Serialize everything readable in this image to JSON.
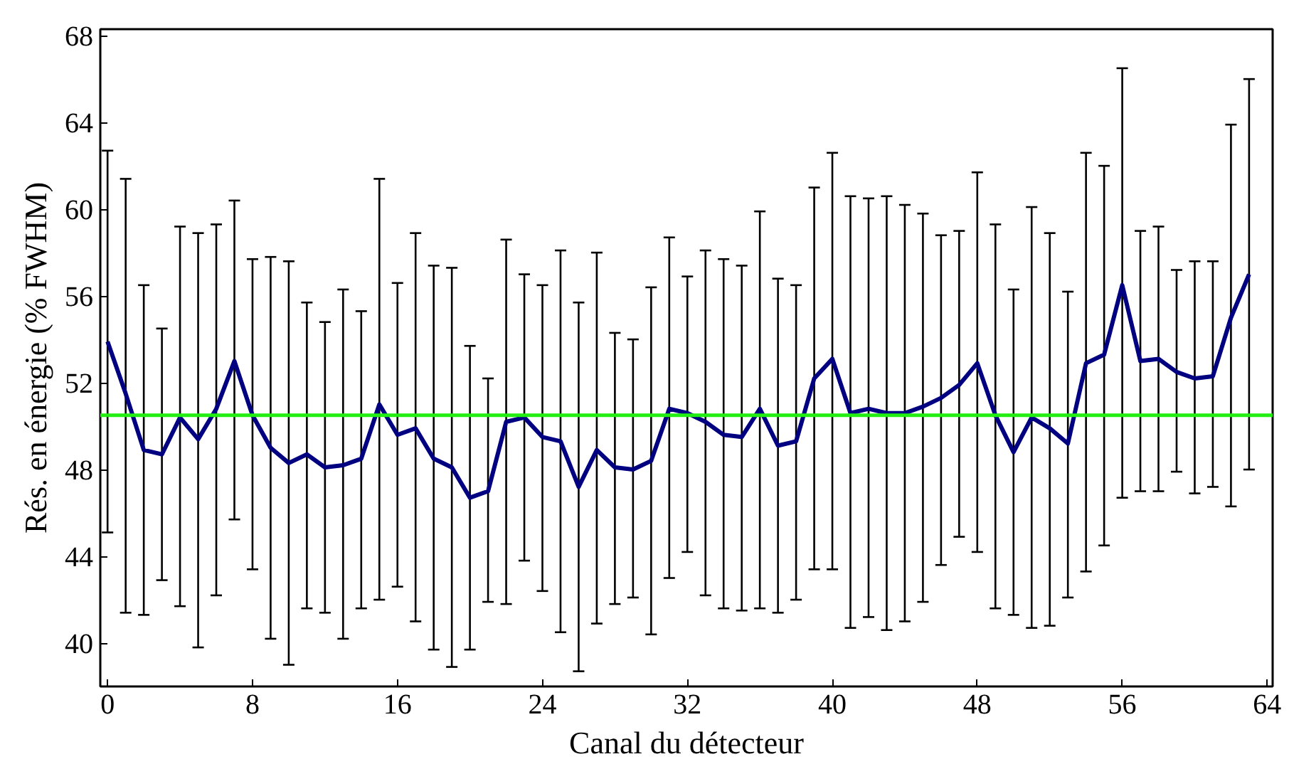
{
  "chart_data": {
    "type": "line",
    "xlabel": "Canal du détecteur",
    "ylabel": "Rés. en énergie (% FWHM)",
    "x": [
      0,
      1,
      2,
      3,
      4,
      5,
      6,
      7,
      8,
      9,
      10,
      11,
      12,
      13,
      14,
      15,
      16,
      17,
      18,
      19,
      20,
      21,
      22,
      23,
      24,
      25,
      26,
      27,
      28,
      29,
      30,
      31,
      32,
      33,
      34,
      35,
      36,
      37,
      38,
      39,
      40,
      41,
      42,
      43,
      44,
      45,
      46,
      47,
      48,
      49,
      50,
      51,
      52,
      53,
      54,
      55,
      56,
      57,
      58,
      59,
      60,
      61,
      62,
      63
    ],
    "series": [
      {
        "color": "#000080",
        "values": [
          53.9,
          51.5,
          48.9,
          48.7,
          50.4,
          49.4,
          50.8,
          53.0,
          50.5,
          49.0,
          48.3,
          48.7,
          48.1,
          48.2,
          48.5,
          51.0,
          49.6,
          49.9,
          48.5,
          48.1,
          46.7,
          47.0,
          50.2,
          50.4,
          49.5,
          49.3,
          47.2,
          48.9,
          48.1,
          48.0,
          48.4,
          50.8,
          50.6,
          50.2,
          49.6,
          49.5,
          50.8,
          49.1,
          49.3,
          52.2,
          53.1,
          50.6,
          50.8,
          50.6,
          50.6,
          50.9,
          51.3,
          51.9,
          52.9,
          50.5,
          48.8,
          50.4,
          49.9,
          49.2,
          52.9,
          53.3,
          56.5,
          53.0,
          53.1,
          52.5,
          52.2,
          52.3,
          55.0,
          57.0
        ],
        "errors": [
          [
            45.1,
            62.7
          ],
          [
            41.4,
            61.4
          ],
          [
            41.3,
            56.5
          ],
          [
            42.9,
            54.5
          ],
          [
            41.7,
            59.2
          ],
          [
            39.8,
            58.9
          ],
          [
            42.2,
            59.3
          ],
          [
            45.7,
            60.4
          ],
          [
            43.4,
            57.7
          ],
          [
            40.2,
            57.8
          ],
          [
            39.0,
            57.6
          ],
          [
            41.6,
            55.7
          ],
          [
            41.4,
            54.8
          ],
          [
            40.2,
            56.3
          ],
          [
            41.6,
            55.3
          ],
          [
            42.0,
            61.4
          ],
          [
            42.6,
            56.6
          ],
          [
            41.0,
            58.9
          ],
          [
            39.7,
            57.4
          ],
          [
            38.9,
            57.3
          ],
          [
            39.7,
            53.7
          ],
          [
            41.9,
            52.2
          ],
          [
            41.8,
            58.6
          ],
          [
            43.8,
            57.0
          ],
          [
            42.4,
            56.5
          ],
          [
            40.5,
            58.1
          ],
          [
            38.7,
            55.7
          ],
          [
            40.9,
            58.0
          ],
          [
            41.8,
            54.3
          ],
          [
            42.1,
            54.0
          ],
          [
            40.4,
            56.4
          ],
          [
            43.0,
            58.7
          ],
          [
            44.2,
            56.9
          ],
          [
            42.2,
            58.1
          ],
          [
            41.6,
            57.7
          ],
          [
            41.5,
            57.4
          ],
          [
            41.6,
            59.9
          ],
          [
            41.4,
            56.8
          ],
          [
            42.0,
            56.5
          ],
          [
            43.4,
            61.0
          ],
          [
            43.4,
            62.6
          ],
          [
            40.7,
            60.6
          ],
          [
            41.2,
            60.5
          ],
          [
            40.6,
            60.6
          ],
          [
            41.0,
            60.2
          ],
          [
            41.9,
            59.8
          ],
          [
            43.6,
            58.8
          ],
          [
            44.9,
            59.0
          ],
          [
            44.2,
            61.7
          ],
          [
            41.6,
            59.3
          ],
          [
            41.3,
            56.3
          ],
          [
            40.7,
            60.1
          ],
          [
            40.8,
            58.9
          ],
          [
            42.1,
            56.2
          ],
          [
            43.3,
            62.6
          ],
          [
            44.5,
            62.0
          ],
          [
            46.7,
            66.5
          ],
          [
            47.0,
            59.0
          ],
          [
            47.0,
            59.2
          ],
          [
            47.9,
            57.2
          ],
          [
            46.9,
            57.6
          ],
          [
            47.2,
            57.6
          ],
          [
            46.3,
            63.9
          ],
          [
            48.0,
            66.0
          ]
        ]
      }
    ],
    "ref_lines": [
      {
        "axis": "y",
        "value": 50.5,
        "color": "#22ee11"
      }
    ],
    "xlim": [
      -0.4,
      64.3
    ],
    "ylim": [
      38,
      68.3
    ],
    "xticks": [
      0,
      8,
      16,
      24,
      32,
      40,
      48,
      56,
      64
    ],
    "yticks": [
      40,
      44,
      48,
      52,
      56,
      60,
      64,
      68
    ],
    "grid": false,
    "marker": "none",
    "line_style": "solid"
  }
}
